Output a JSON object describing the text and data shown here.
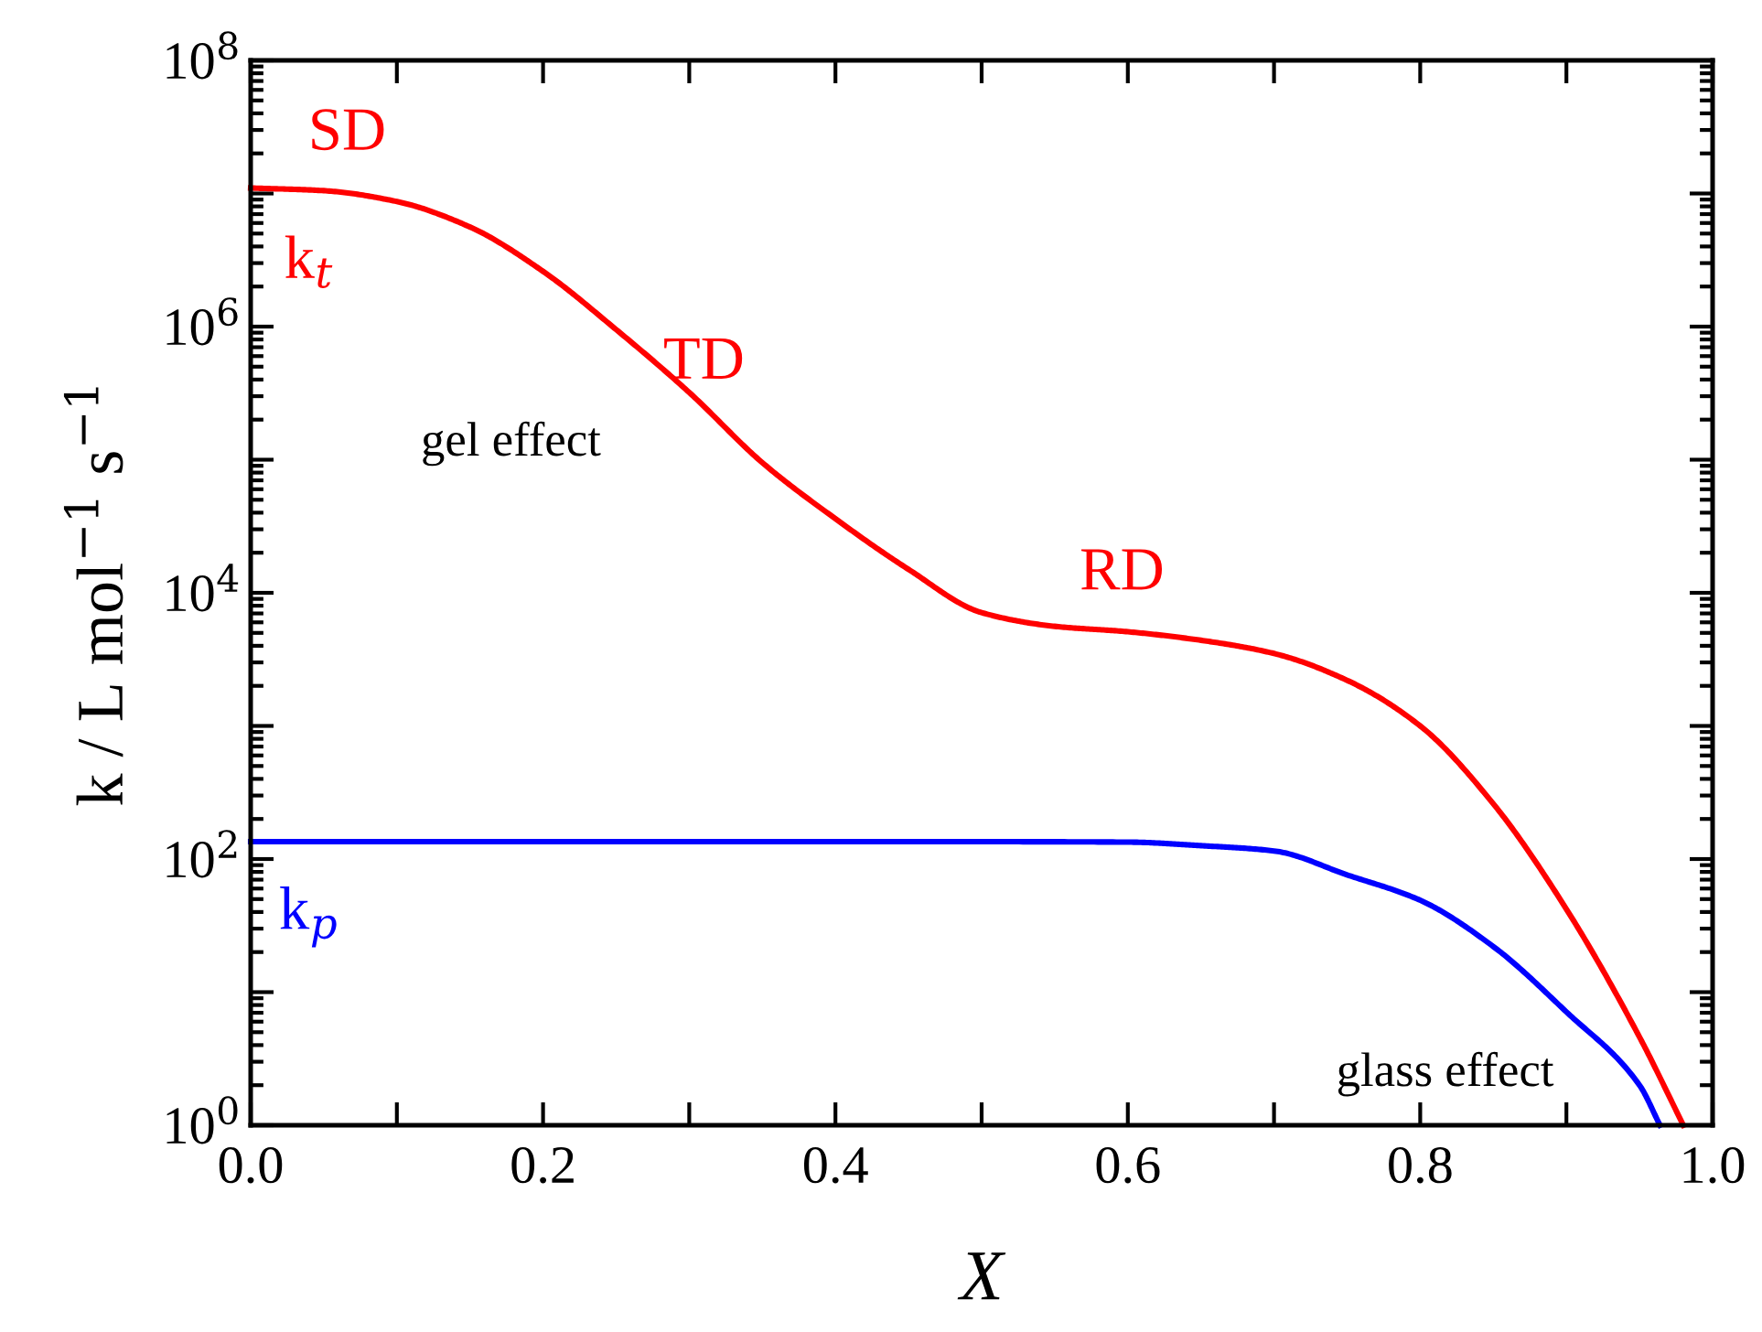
{
  "chart_data": {
    "type": "line",
    "xlabel": "X",
    "ylabel": "k / L mol$^{−1}$ s$^{−1}$",
    "log": "y",
    "grid": false,
    "legend": false,
    "marker": "none",
    "line_style": "solid",
    "xlim": [
      0.0,
      1.0
    ],
    "ylim": [
      1,
      100000000
    ],
    "xticks": [
      {
        "value": 0.0,
        "label": "0.0"
      },
      {
        "value": 0.1,
        "label": null
      },
      {
        "value": 0.2,
        "label": "0.2"
      },
      {
        "value": 0.3,
        "label": null
      },
      {
        "value": 0.4,
        "label": "0.4"
      },
      {
        "value": 0.5,
        "label": null
      },
      {
        "value": 0.6,
        "label": "0.6"
      },
      {
        "value": 0.7,
        "label": null
      },
      {
        "value": 0.8,
        "label": "0.8"
      },
      {
        "value": 0.9,
        "label": null
      },
      {
        "value": 1.0,
        "label": "1.0"
      }
    ],
    "yticks": [
      {
        "value": 1,
        "label": "10$^{0}$"
      },
      {
        "value": 10,
        "label": null
      },
      {
        "value": 100,
        "label": "10$^{2}$"
      },
      {
        "value": 1000,
        "label": null
      },
      {
        "value": 10000,
        "label": "10$^{4}$"
      },
      {
        "value": 100000,
        "label": null
      },
      {
        "value": 1000000,
        "label": "10$^{6}$"
      },
      {
        "value": 10000000,
        "label": null
      },
      {
        "value": 100000000,
        "label": "10$^{8}$"
      }
    ],
    "series": [
      {
        "name": "k$_{t}$",
        "color": "#ff0000",
        "x": [
          0,
          0.05,
          0.1,
          0.15,
          0.2,
          0.25,
          0.3,
          0.35,
          0.4,
          0.45,
          0.5,
          0.55,
          0.6,
          0.65,
          0.7,
          0.75,
          0.8,
          0.85,
          0.9,
          0.95,
          0.98
        ],
        "values": [
          11000000,
          10500000,
          8700000,
          5600000,
          2600000,
          950000,
          320000,
          95000,
          36000,
          15000,
          7100,
          5600,
          5100,
          4400,
          3500,
          2200,
          1000,
          260,
          42,
          4.6,
          1
        ]
      },
      {
        "name": "k$_{p}$",
        "color": "#0000ff",
        "x": [
          0,
          0.1,
          0.2,
          0.3,
          0.4,
          0.5,
          0.6,
          0.65,
          0.7,
          0.75,
          0.8,
          0.85,
          0.9,
          0.95,
          0.964
        ],
        "values": [
          135,
          135,
          135,
          135,
          135,
          135,
          134,
          126,
          115,
          76,
          49,
          22,
          7.1,
          2.0,
          1
        ]
      }
    ],
    "annotations": [
      "SD",
      "TD",
      "RD",
      "gel effect",
      "glass effect"
    ]
  }
}
